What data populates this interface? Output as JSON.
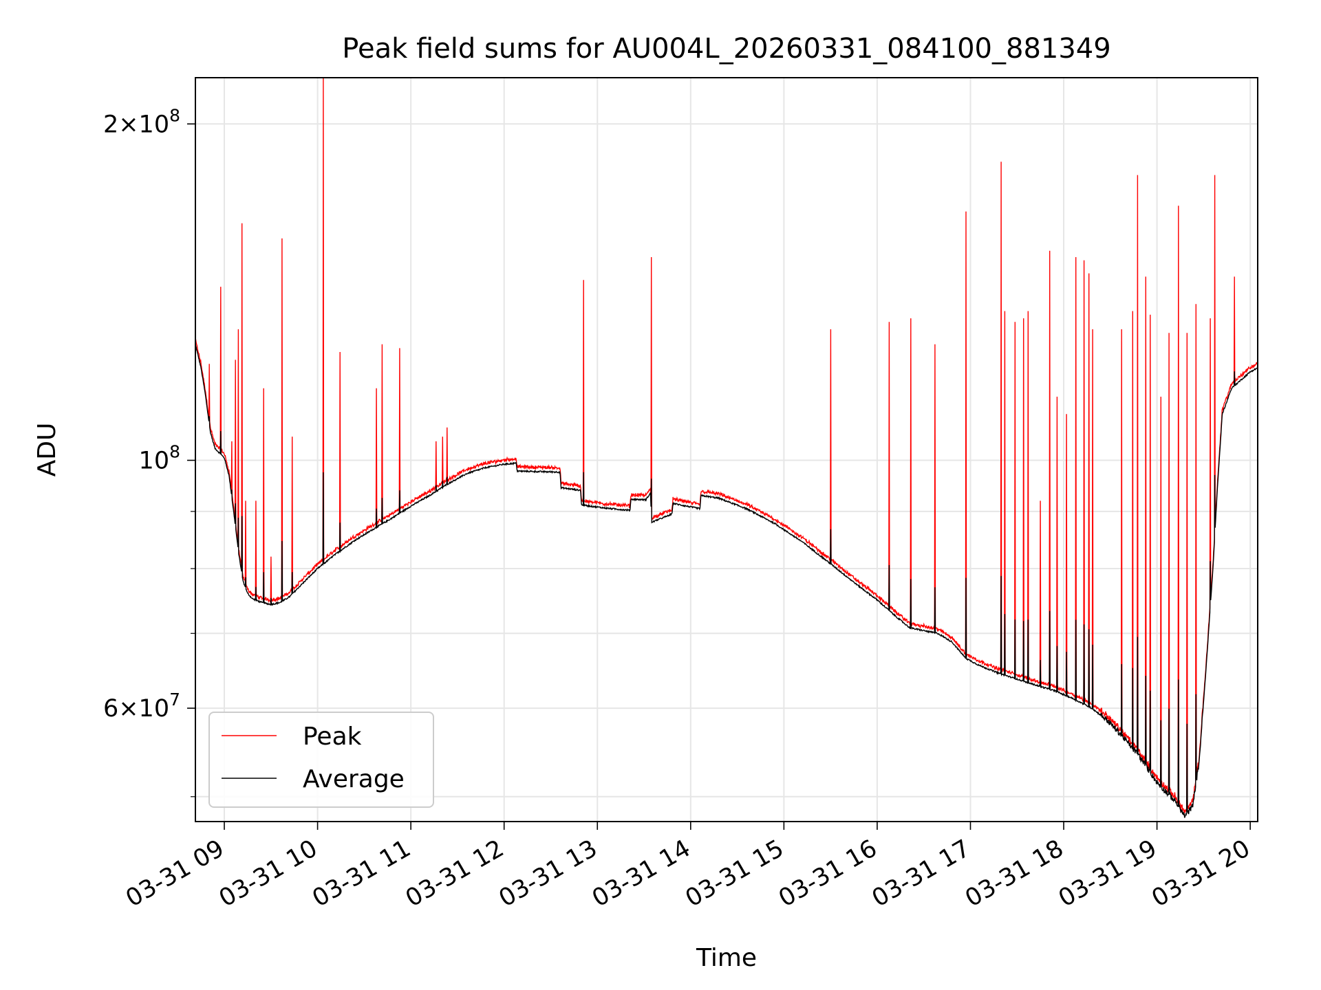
{
  "chart_data": {
    "type": "line",
    "title": "Peak field sums for AU004L_20260331_084100_881349",
    "xlabel": "Time",
    "ylabel": "ADU",
    "y_scale": "log",
    "ylim": [
      47500000,
      220000000
    ],
    "x_unit": "hours",
    "xlim": [
      8.69,
      20.08
    ],
    "x_ticks": [
      {
        "x": 9,
        "label": "03-31 09"
      },
      {
        "x": 10,
        "label": "03-31 10"
      },
      {
        "x": 11,
        "label": "03-31 11"
      },
      {
        "x": 12,
        "label": "03-31 12"
      },
      {
        "x": 13,
        "label": "03-31 13"
      },
      {
        "x": 14,
        "label": "03-31 14"
      },
      {
        "x": 15,
        "label": "03-31 15"
      },
      {
        "x": 16,
        "label": "03-31 16"
      },
      {
        "x": 17,
        "label": "03-31 17"
      },
      {
        "x": 18,
        "label": "03-31 18"
      },
      {
        "x": 19,
        "label": "03-31 19"
      },
      {
        "x": 20,
        "label": "03-31 20"
      }
    ],
    "y_ticks": [
      {
        "value": 60000000,
        "base": "6",
        "exp": "7"
      },
      {
        "value": 100000000,
        "base": "",
        "exp": "8"
      },
      {
        "value": 200000000,
        "base": "2",
        "exp": "8"
      }
    ],
    "y_minor_ticks": [
      50000000,
      70000000,
      80000000,
      90000000
    ],
    "grid": true,
    "legend_position": "lower-left",
    "average_baseline": [
      [
        8.69,
        127000000
      ],
      [
        8.75,
        121000000
      ],
      [
        8.8,
        114000000
      ],
      [
        8.85,
        106000000
      ],
      [
        8.9,
        102500000
      ],
      [
        9.0,
        100500000
      ],
      [
        9.05,
        97000000
      ],
      [
        9.1,
        90000000
      ],
      [
        9.15,
        83000000
      ],
      [
        9.2,
        78000000
      ],
      [
        9.25,
        76000000
      ],
      [
        9.3,
        75200000
      ],
      [
        9.4,
        74600000
      ],
      [
        9.5,
        74300000
      ],
      [
        9.6,
        74600000
      ],
      [
        9.7,
        75500000
      ],
      [
        9.8,
        77000000
      ],
      [
        9.9,
        78500000
      ],
      [
        10.0,
        80000000
      ],
      [
        10.2,
        82500000
      ],
      [
        10.4,
        84800000
      ],
      [
        10.6,
        86800000
      ],
      [
        10.8,
        88800000
      ],
      [
        11.0,
        91000000
      ],
      [
        11.2,
        93000000
      ],
      [
        11.4,
        95300000
      ],
      [
        11.6,
        97300000
      ],
      [
        11.8,
        98500000
      ],
      [
        12.0,
        99200000
      ],
      [
        12.13,
        99400000
      ],
      [
        12.14,
        97800000
      ],
      [
        12.6,
        97600000
      ],
      [
        12.61,
        94500000
      ],
      [
        12.82,
        94000000
      ],
      [
        12.83,
        91200000
      ],
      [
        13.1,
        90600000
      ],
      [
        13.35,
        90200000
      ],
      [
        13.36,
        92300000
      ],
      [
        13.52,
        92200000
      ],
      [
        13.57,
        93500000
      ],
      [
        13.58,
        88000000
      ],
      [
        13.8,
        89500000
      ],
      [
        13.81,
        91500000
      ],
      [
        14.1,
        90500000
      ],
      [
        14.11,
        93000000
      ],
      [
        14.3,
        92500000
      ],
      [
        14.6,
        90500000
      ],
      [
        14.9,
        87800000
      ],
      [
        15.2,
        84500000
      ],
      [
        15.5,
        80800000
      ],
      [
        15.8,
        77200000
      ],
      [
        16.0,
        75000000
      ],
      [
        16.2,
        72500000
      ],
      [
        16.35,
        70800000
      ],
      [
        16.5,
        70400000
      ],
      [
        16.65,
        70000000
      ],
      [
        16.8,
        68800000
      ],
      [
        16.95,
        66500000
      ],
      [
        17.1,
        65500000
      ],
      [
        17.3,
        64500000
      ],
      [
        17.6,
        63300000
      ],
      [
        17.9,
        62200000
      ],
      [
        18.1,
        61200000
      ],
      [
        18.3,
        60000000
      ],
      [
        18.45,
        58700000
      ],
      [
        18.6,
        57000000
      ],
      [
        18.8,
        54500000
      ],
      [
        19.0,
        51500000
      ],
      [
        19.2,
        49500000
      ],
      [
        19.3,
        48000000
      ],
      [
        19.38,
        49000000
      ],
      [
        19.45,
        53500000
      ],
      [
        19.52,
        64000000
      ],
      [
        19.6,
        80000000
      ],
      [
        19.65,
        95000000
      ],
      [
        19.7,
        110000000
      ],
      [
        19.8,
        116000000
      ],
      [
        19.9,
        118000000
      ],
      [
        20.0,
        120000000
      ],
      [
        20.08,
        121000000
      ]
    ],
    "peak_spikes": [
      [
        8.84,
        122000000
      ],
      [
        8.96,
        143000000
      ],
      [
        9.08,
        104000000
      ],
      [
        9.12,
        123000000
      ],
      [
        9.15,
        131000000
      ],
      [
        9.19,
        163000000
      ],
      [
        9.23,
        92000000
      ],
      [
        9.34,
        92000000
      ],
      [
        9.42,
        116000000
      ],
      [
        9.5,
        82000000
      ],
      [
        9.62,
        158000000
      ],
      [
        9.73,
        105000000
      ],
      [
        10.06,
        220000000
      ],
      [
        10.24,
        125000000
      ],
      [
        10.63,
        116000000
      ],
      [
        10.69,
        127000000
      ],
      [
        10.88,
        126000000
      ],
      [
        11.27,
        104000000
      ],
      [
        11.34,
        105000000
      ],
      [
        11.39,
        107000000
      ],
      [
        12.85,
        145000000
      ],
      [
        13.58,
        152000000
      ],
      [
        15.5,
        131000000
      ],
      [
        16.13,
        133000000
      ],
      [
        16.36,
        134000000
      ],
      [
        16.62,
        127000000
      ],
      [
        16.95,
        167000000
      ],
      [
        17.33,
        185000000
      ],
      [
        17.37,
        136000000
      ],
      [
        17.48,
        133000000
      ],
      [
        17.57,
        134000000
      ],
      [
        17.62,
        136000000
      ],
      [
        17.75,
        92000000
      ],
      [
        17.85,
        154000000
      ],
      [
        17.93,
        114000000
      ],
      [
        18.03,
        110000000
      ],
      [
        18.13,
        152000000
      ],
      [
        18.22,
        151000000
      ],
      [
        18.27,
        147000000
      ],
      [
        18.31,
        131000000
      ],
      [
        18.62,
        131000000
      ],
      [
        18.74,
        136000000
      ],
      [
        18.79,
        180000000
      ],
      [
        18.88,
        146000000
      ],
      [
        18.93,
        135000000
      ],
      [
        19.04,
        114000000
      ],
      [
        19.13,
        130000000
      ],
      [
        19.23,
        169000000
      ],
      [
        19.32,
        130000000
      ],
      [
        19.42,
        138000000
      ],
      [
        19.57,
        134000000
      ],
      [
        19.62,
        180000000
      ],
      [
        19.83,
        146000000
      ]
    ],
    "series": [
      {
        "name": "Peak",
        "color": "#ff0000"
      },
      {
        "name": "Average",
        "color": "#000000"
      }
    ]
  }
}
